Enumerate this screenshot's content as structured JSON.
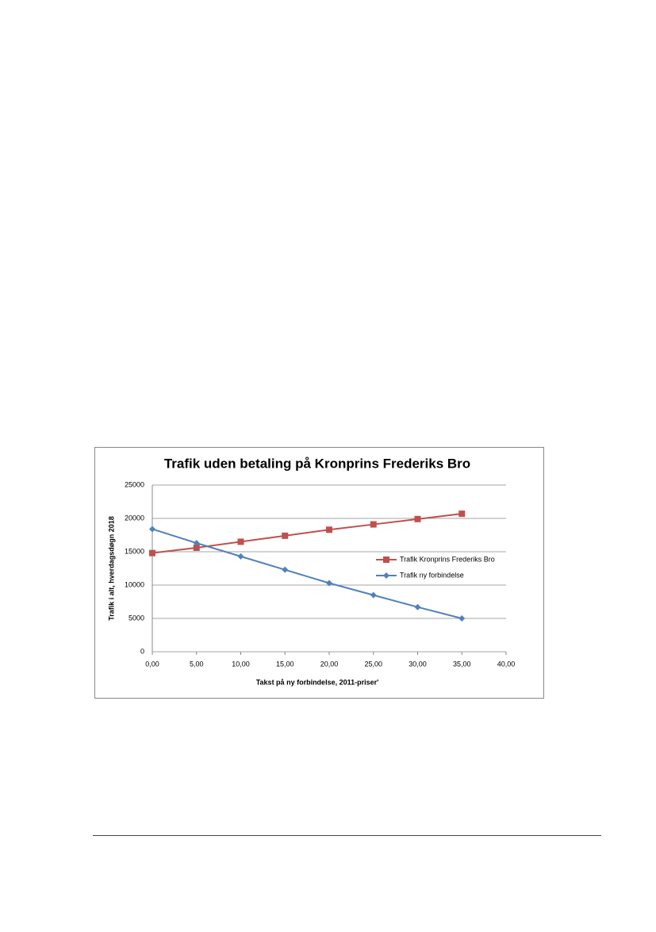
{
  "chart_data": {
    "type": "line",
    "title": "Trafik uden betaling på Kronprins Frederiks Bro",
    "x_label": "Takst på ny forbindelse, 2011-priser'",
    "y_label": "Trafik i alt, hverdagsdøgn 2018",
    "x": [
      0,
      5,
      10,
      15,
      20,
      25,
      30,
      35
    ],
    "series": [
      {
        "name": "Trafik Kronprins Frederiks Bro",
        "color": "#c0504d",
        "marker": "square",
        "values": [
          14800,
          15600,
          16500,
          17400,
          18300,
          19100,
          19900,
          20700
        ]
      },
      {
        "name": "Trafik ny forbindelse",
        "color": "#4f81bd",
        "marker": "diamond",
        "values": [
          18400,
          16300,
          14300,
          12300,
          10300,
          8500,
          6700,
          5000
        ]
      }
    ],
    "xlim": [
      0,
      40
    ],
    "xticks": [
      {
        "value": 0,
        "label": "0,00"
      },
      {
        "value": 5,
        "label": "5,00"
      },
      {
        "value": 10,
        "label": "10,00"
      },
      {
        "value": 15,
        "label": "15,00"
      },
      {
        "value": 20,
        "label": "20,00"
      },
      {
        "value": 25,
        "label": "25,00"
      },
      {
        "value": 30,
        "label": "30,00"
      },
      {
        "value": 35,
        "label": "35,00"
      },
      {
        "value": 40,
        "label": "40,00"
      }
    ],
    "ylim": [
      0,
      25000
    ],
    "yticks": [
      0,
      5000,
      10000,
      15000,
      20000,
      25000
    ],
    "grid": true,
    "legend": "right"
  }
}
